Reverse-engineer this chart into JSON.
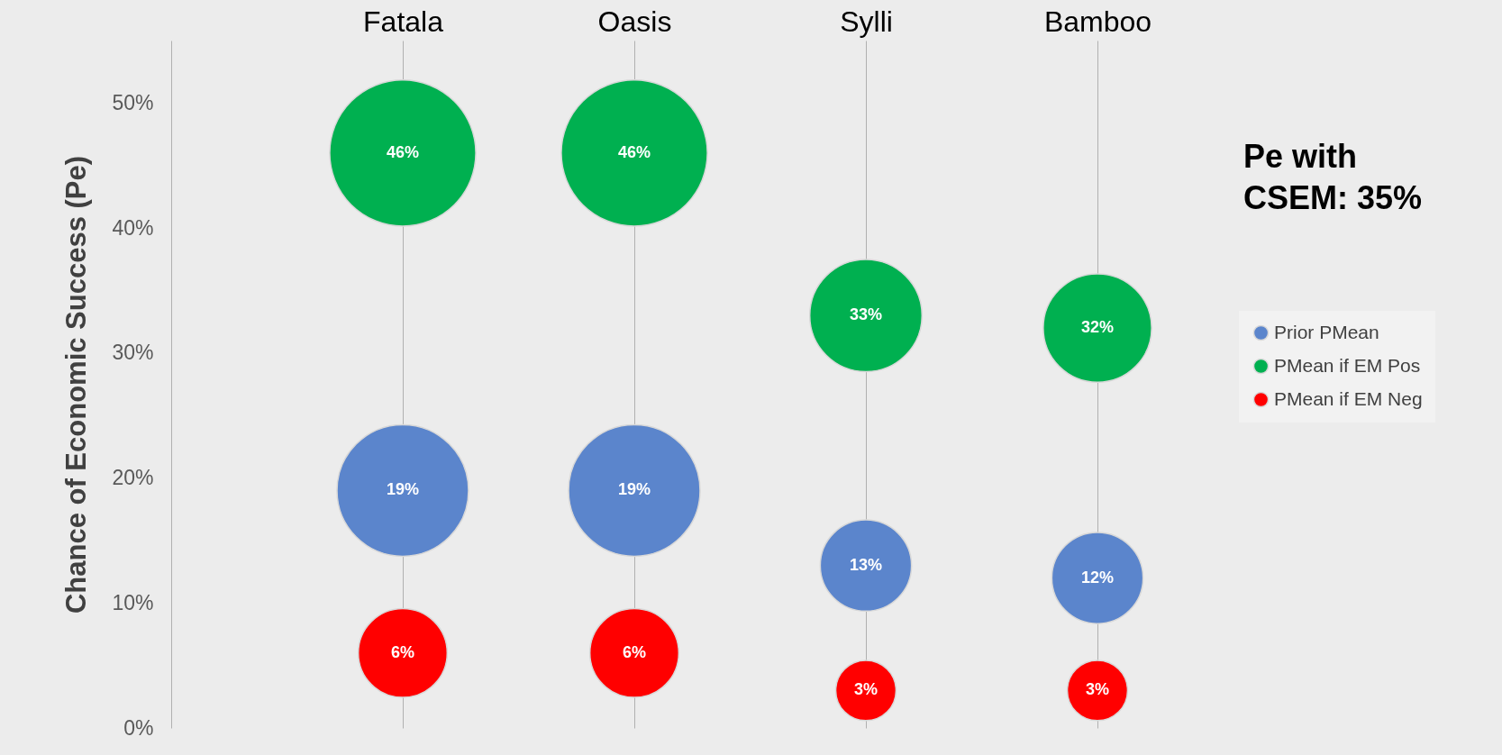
{
  "chart_data": {
    "type": "bubble",
    "categories": [
      "Fatala",
      "Oasis",
      "Sylli",
      "Bamboo"
    ],
    "ylabel": "Chance of Economic Success  (Pe)",
    "ylim": [
      0,
      55
    ],
    "yticks": [
      {
        "value": 0,
        "label": "0%"
      },
      {
        "value": 10,
        "label": "10%"
      },
      {
        "value": 20,
        "label": "20%"
      },
      {
        "value": 30,
        "label": "30%"
      },
      {
        "value": 40,
        "label": "40%"
      },
      {
        "value": 50,
        "label": "50%"
      }
    ],
    "grid": "x",
    "legend": "right",
    "annotations": [
      "Pe with CSEM: 35%"
    ],
    "series": [
      {
        "name": "Prior PMean",
        "color": "#5b85cc",
        "values": [
          19,
          19,
          13,
          12
        ],
        "sizes": [
          0.81,
          0.81,
          0.39,
          0.39
        ],
        "value_labels": [
          "19%",
          "19%",
          "13%",
          "12%"
        ]
      },
      {
        "name": "PMean if EM Pos",
        "color": "#00b050",
        "values": [
          46,
          46,
          33,
          32
        ],
        "sizes": [
          1,
          1,
          0.59,
          0.55
        ],
        "value_labels": [
          "46%",
          "46%",
          "33%",
          "32%"
        ]
      },
      {
        "name": "PMean if EM Neg",
        "color": "#ff0000",
        "values": [
          6,
          6,
          3,
          3
        ],
        "sizes": [
          0.37,
          0.37,
          0.17,
          0.17
        ],
        "value_labels": [
          "6%",
          "6%",
          "3%",
          "3%"
        ]
      }
    ]
  }
}
